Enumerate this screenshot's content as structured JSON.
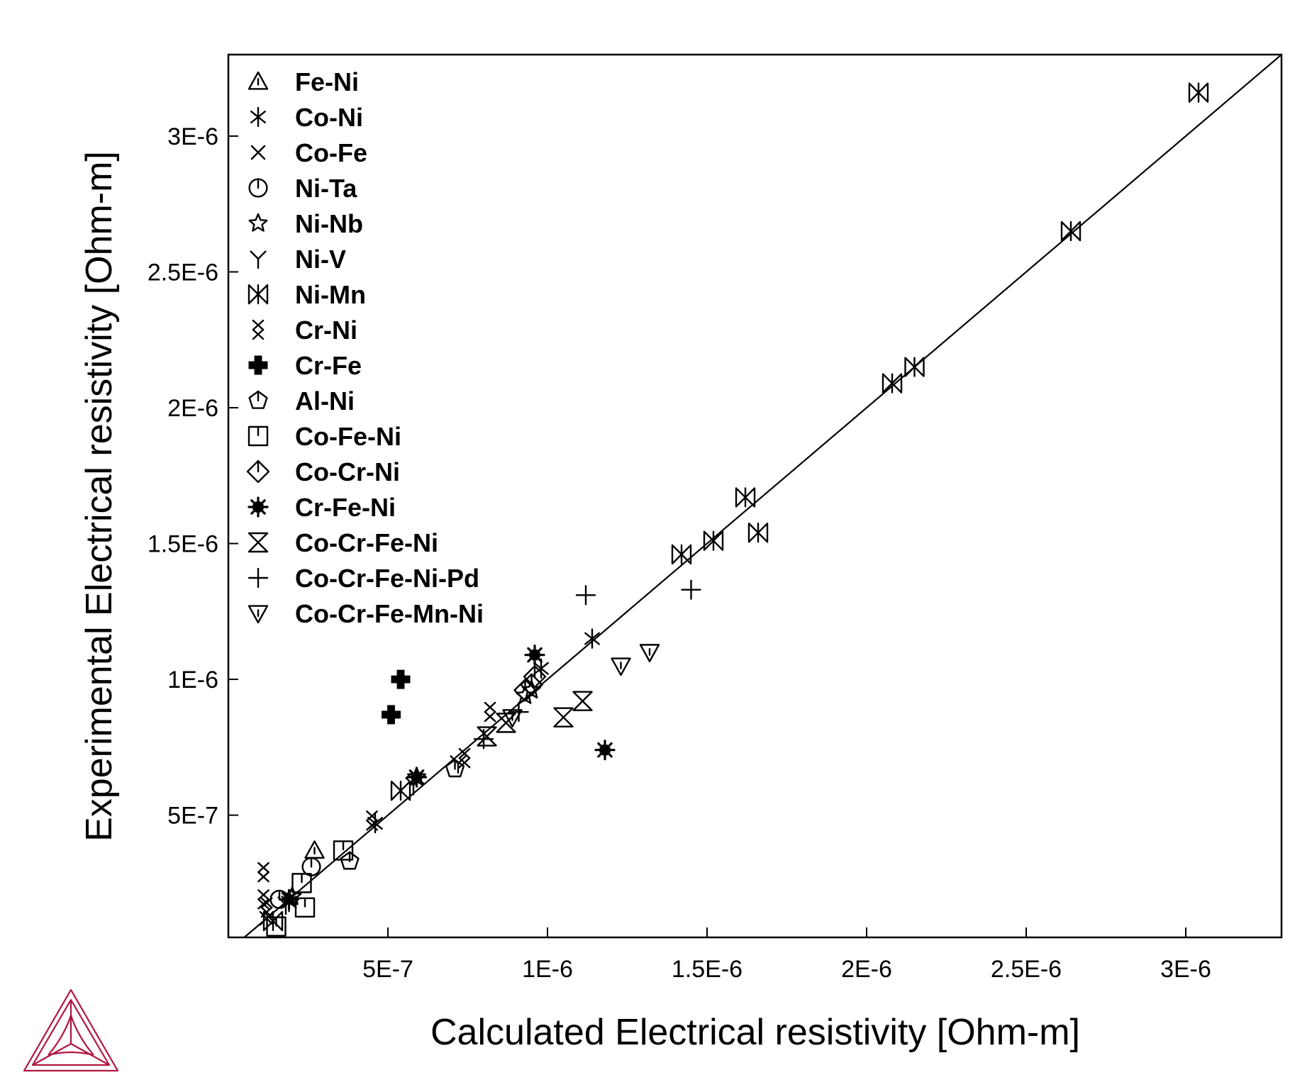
{
  "chart_data": {
    "type": "scatter",
    "xlabel": "Calculated Electrical resistivity [Ohm-m]",
    "ylabel": "Experimental Electrical resistivity [Ohm-m]",
    "xlim": [
      0.0,
      3.3e-06
    ],
    "ylim": [
      5e-08,
      3.3e-06
    ],
    "x_ticks": [
      5e-07,
      1e-06,
      1.5e-06,
      2e-06,
      2.5e-06,
      3e-06
    ],
    "x_tick_labels": [
      "5E-7",
      "1E-6",
      "1.5E-6",
      "2E-6",
      "2.5E-6",
      "3E-6"
    ],
    "y_ticks": [
      5e-07,
      1e-06,
      1.5e-06,
      2e-06,
      2.5e-06,
      3e-06
    ],
    "y_tick_labels": [
      "5E-7",
      "1E-6",
      "1.5E-6",
      "2E-6",
      "2.5E-6",
      "3E-6"
    ],
    "grid": false,
    "legend_position": "top-left",
    "reference_line": {
      "type": "y=x"
    },
    "series": [
      {
        "name": "Fe-Ni",
        "marker": "triangle-up",
        "points": [
          [
            2.7e-07,
            3.7e-07
          ]
        ]
      },
      {
        "name": "Co-Ni",
        "marker": "asterisk",
        "points": [
          [
            1.14e-06,
            1.15e-06
          ],
          [
            9.8e-07,
            1.04e-06
          ],
          [
            4.6e-07,
            4.7e-07
          ],
          [
            1.9e-07,
            1.8e-07
          ]
        ]
      },
      {
        "name": "Co-Fe",
        "marker": "x",
        "points": [
          [
            1.2e-07,
            1.2e-07
          ]
        ]
      },
      {
        "name": "Ni-Ta",
        "marker": "circle",
        "points": [
          [
            2.6e-07,
            3.1e-07
          ],
          [
            1.6e-07,
            1.9e-07
          ]
        ]
      },
      {
        "name": "Ni-Nb",
        "marker": "star",
        "points": [
          [
            5.9e-07,
            6.4e-07
          ],
          [
            9.5e-07,
            9.6e-07
          ],
          [
            9.3e-07,
            9.4e-07
          ],
          [
            2e-07,
            2e-07
          ]
        ]
      },
      {
        "name": "Ni-V",
        "marker": "y",
        "points": [
          [
            5.8e-07,
            6.1e-07
          ],
          [
            7.2e-07,
            6.9e-07
          ],
          [
            1.8e-07,
            1.7e-07
          ]
        ]
      },
      {
        "name": "Ni-Mn",
        "marker": "bowtie",
        "points": [
          [
            3.04e-06,
            3.16e-06
          ],
          [
            2.64e-06,
            2.65e-06
          ],
          [
            2.15e-06,
            2.15e-06
          ],
          [
            2.08e-06,
            2.09e-06
          ],
          [
            1.62e-06,
            1.67e-06
          ],
          [
            1.66e-06,
            1.54e-06
          ],
          [
            1.52e-06,
            1.51e-06
          ],
          [
            1.42e-06,
            1.46e-06
          ],
          [
            5.4e-07,
            5.9e-07
          ],
          [
            1.4e-07,
            1.1e-07
          ]
        ]
      },
      {
        "name": "Cr-Ni",
        "marker": "double-x",
        "points": [
          [
            1.1e-07,
            2.9e-07
          ],
          [
            1.1e-07,
            1.9e-07
          ],
          [
            1.2e-07,
            1.6e-07
          ],
          [
            8.2e-07,
            8.8e-07
          ],
          [
            7.4e-07,
            7.1e-07
          ],
          [
            4.5e-07,
            4.8e-07
          ]
        ]
      },
      {
        "name": "Cr-Fe",
        "marker": "plus-filled",
        "points": [
          [
            5.4e-07,
            1e-06
          ],
          [
            5.1e-07,
            8.7e-07
          ]
        ]
      },
      {
        "name": "Al-Ni",
        "marker": "pentagon",
        "points": [
          [
            3.8e-07,
            3.3e-07
          ],
          [
            7.1e-07,
            6.7e-07
          ]
        ]
      },
      {
        "name": "Co-Fe-Ni",
        "marker": "square",
        "points": [
          [
            3.6e-07,
            3.7e-07
          ],
          [
            2.3e-07,
            2.5e-07
          ],
          [
            2.4e-07,
            1.6e-07
          ],
          [
            1.5e-07,
            9e-08
          ]
        ]
      },
      {
        "name": "Co-Cr-Ni",
        "marker": "diamond",
        "points": [
          [
            9.6e-07,
            1.01e-06
          ],
          [
            9.5e-07,
            9.8e-07
          ],
          [
            9.3e-07,
            9.6e-07
          ]
        ]
      },
      {
        "name": "Cr-Fe-Ni",
        "marker": "starburst",
        "points": [
          [
            1.18e-06,
            7.4e-07
          ],
          [
            9.6e-07,
            1.09e-06
          ],
          [
            5.9e-07,
            6.4e-07
          ],
          [
            1.9e-07,
            1.9e-07
          ]
        ]
      },
      {
        "name": "Co-Cr-Fe-Ni",
        "marker": "hourglass",
        "points": [
          [
            1.11e-06,
            9.2e-07
          ],
          [
            1.05e-06,
            8.6e-07
          ],
          [
            8.1e-07,
            7.9e-07
          ],
          [
            8.7e-07,
            8.4e-07
          ]
        ]
      },
      {
        "name": "Co-Cr-Fe-Ni-Pd",
        "marker": "plus",
        "points": [
          [
            1.12e-06,
            1.31e-06
          ],
          [
            1.45e-06,
            1.33e-06
          ],
          [
            8e-07,
            7.8e-07
          ],
          [
            9.1e-07,
            8.8e-07
          ]
        ]
      },
      {
        "name": "Co-Cr-Fe-Mn-Ni",
        "marker": "triangle-down",
        "points": [
          [
            1.23e-06,
            1.05e-06
          ],
          [
            1.32e-06,
            1.1e-06
          ],
          [
            8.9e-07,
            8.6e-07
          ]
        ]
      }
    ]
  }
}
